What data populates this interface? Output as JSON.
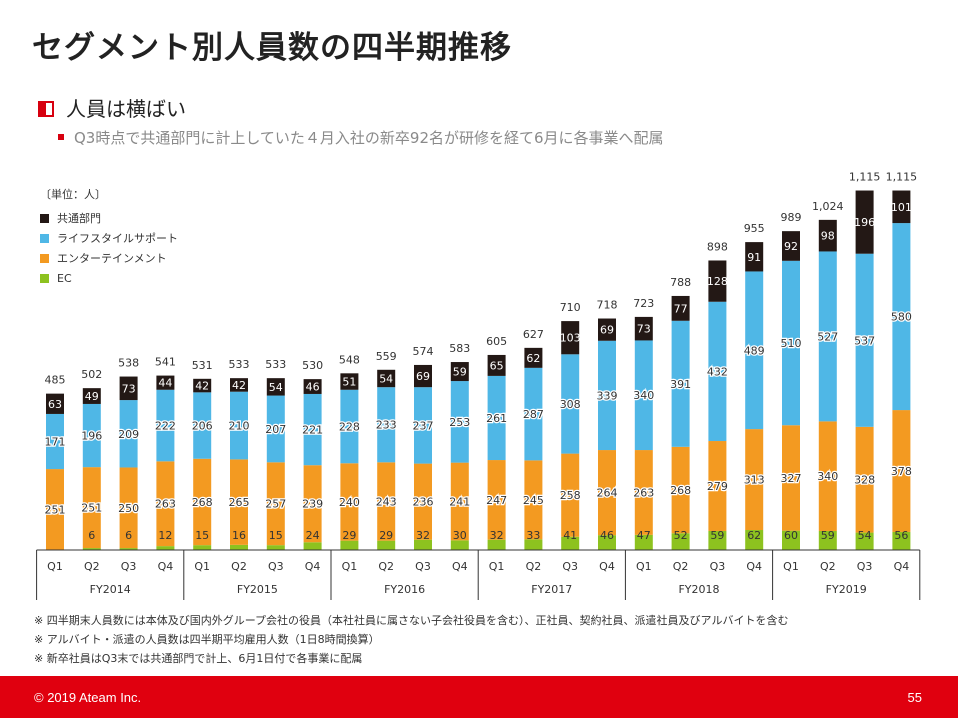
{
  "header": {
    "title": "セグメント別人員数の四半期推移",
    "bullet_main": "人員は横ばい",
    "bullet_sub": "Q3時点で共通部門に計上していた４月入社の新卒92名が研修を経て6月に各事業へ配属"
  },
  "legend": {
    "unit": "〔単位：人〕"
  },
  "chart_data": {
    "type": "bar",
    "stacked": true,
    "unit": "〔単位：人〕",
    "categories": [
      "Q1",
      "Q2",
      "Q3",
      "Q4",
      "Q1",
      "Q2",
      "Q3",
      "Q4",
      "Q1",
      "Q2",
      "Q3",
      "Q4",
      "Q1",
      "Q2",
      "Q3",
      "Q4",
      "Q1",
      "Q2",
      "Q3",
      "Q4",
      "Q1",
      "Q2",
      "Q3",
      "Q4"
    ],
    "groups": [
      {
        "label": "FY2014",
        "count": 4
      },
      {
        "label": "FY2015",
        "count": 4
      },
      {
        "label": "FY2016",
        "count": 4
      },
      {
        "label": "FY2017",
        "count": 4
      },
      {
        "label": "FY2018",
        "count": 4
      },
      {
        "label": "FY2019",
        "count": 4
      }
    ],
    "series": [
      {
        "name": "EC",
        "color": "#8dc21f",
        "values": [
          0,
          6,
          6,
          12,
          15,
          16,
          15,
          24,
          29,
          29,
          32,
          30,
          32,
          33,
          41,
          46,
          47,
          52,
          59,
          62,
          60,
          59,
          54,
          56
        ]
      },
      {
        "name": "エンターテインメント",
        "color": "#f39a21",
        "values": [
          251,
          251,
          250,
          263,
          268,
          265,
          257,
          239,
          240,
          243,
          236,
          241,
          247,
          245,
          258,
          264,
          263,
          268,
          279,
          313,
          327,
          340,
          328,
          378
        ]
      },
      {
        "name": "ライフスタイルサポート",
        "color": "#4fb7e6",
        "values": [
          171,
          196,
          209,
          222,
          206,
          210,
          207,
          221,
          228,
          233,
          237,
          253,
          261,
          287,
          308,
          339,
          340,
          391,
          432,
          489,
          510,
          527,
          537,
          580
        ]
      },
      {
        "name": "共通部門",
        "color": "#231815",
        "values": [
          63,
          49,
          73,
          44,
          42,
          42,
          54,
          46,
          51,
          54,
          69,
          59,
          65,
          62,
          103,
          69,
          73,
          77,
          128,
          91,
          92,
          98,
          196,
          101
        ]
      }
    ],
    "value_labels": [
      [
        "251",
        "251",
        "250",
        "263",
        "268",
        "265",
        "257",
        "239",
        "240",
        "243",
        "236",
        "241",
        "247",
        "245",
        "258",
        "264",
        "263",
        "268",
        "279",
        "313",
        "327",
        "340",
        "328",
        "378"
      ],
      [
        "171",
        "196",
        "209",
        "222",
        "206",
        "210",
        "207",
        "221",
        "228",
        "233",
        "237",
        "253",
        "261",
        "287",
        "308",
        "339",
        "340",
        "391",
        "432",
        "489",
        "510",
        "527",
        "537",
        "580"
      ],
      [
        "63",
        "49",
        "73",
        "44",
        "42",
        "42",
        "54",
        "46",
        "51",
        "54",
        "69",
        "59",
        "65",
        "62",
        "103",
        "69",
        "73",
        "77",
        "128",
        "91",
        "92",
        "98",
        "196",
        "101"
      ]
    ],
    "ec_labels": [
      "",
      "6",
      "6",
      "12",
      "15",
      "16",
      "15",
      "24",
      "29",
      "29",
      "32",
      "30",
      "32",
      "33",
      "41",
      "46",
      "47",
      "52",
      "59",
      "62",
      "60",
      "59",
      "54",
      "56"
    ],
    "totals": [
      485,
      502,
      538,
      541,
      531,
      533,
      533,
      530,
      548,
      559,
      574,
      583,
      605,
      627,
      710,
      718,
      723,
      788,
      898,
      955,
      989,
      1024,
      1115,
      1115
    ],
    "total_labels": [
      "485",
      "502",
      "538",
      "541",
      "531",
      "533",
      "533",
      "530",
      "548",
      "559",
      "574",
      "583",
      "605",
      "627",
      "710",
      "718",
      "723",
      "788",
      "898",
      "955",
      "989",
      "1,024",
      "1,115",
      "1,115"
    ],
    "legend_order": [
      "共通部門",
      "ライフスタイルサポート",
      "エンターテインメント",
      "EC"
    ],
    "legend_placement": "top-left",
    "grid": false
  },
  "notes": [
    "※  四半期末人員数には本体及び国内外グループ会社の役員（本社社員に属さない子会社役員を含む）、正社員、契約社員、派遣社員及びアルバイトを含む",
    "※  アルバイト・派遣の人員数は四半期平均雇用人数（1日8時間換算）",
    "※  新卒社員はQ3末では共通部門で計上、6月1日付で各事業に配属"
  ],
  "footer": {
    "copyright": "© 2019 Ateam Inc.",
    "page_number": "55"
  }
}
